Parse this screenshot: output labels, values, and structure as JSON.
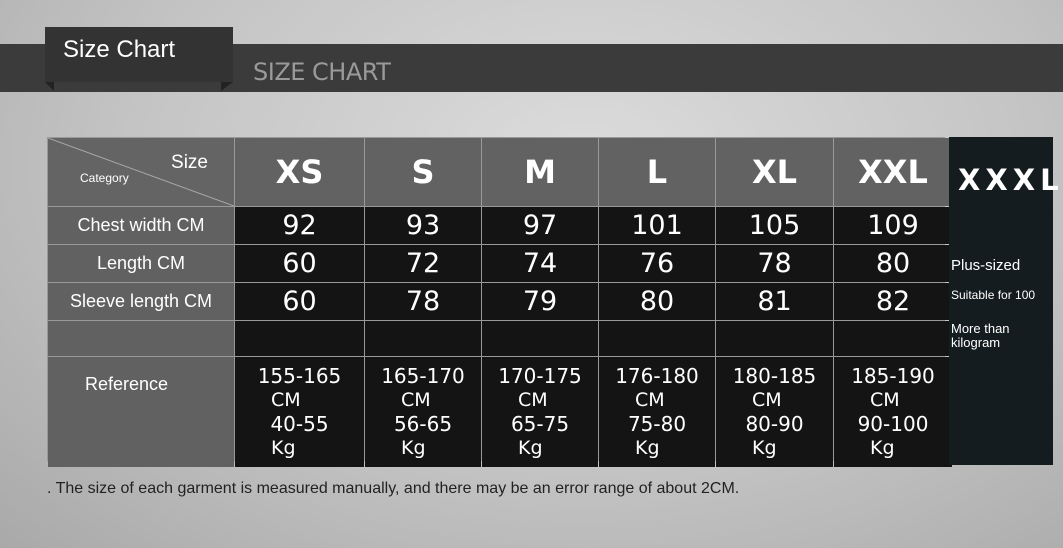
{
  "header": {
    "title": "Size Chart",
    "subtitle": "SIZE CHART"
  },
  "table": {
    "corner": {
      "size": "Size",
      "category": "Category"
    },
    "sizes": [
      "XS",
      "S",
      "M",
      "L",
      "XL",
      "XXL"
    ],
    "rows": [
      {
        "label": "Chest width CM",
        "values": [
          "92",
          "93",
          "97",
          "101",
          "105",
          "109"
        ]
      },
      {
        "label": "Length CM",
        "values": [
          "60",
          "72",
          "74",
          "76",
          "78",
          "80"
        ]
      },
      {
        "label": "Sleeve length CM",
        "values": [
          "60",
          "78",
          "79",
          "80",
          "81",
          "82"
        ]
      },
      {
        "label": "",
        "values": [
          "",
          "",
          "",
          "",
          "",
          ""
        ]
      }
    ],
    "reference": {
      "label": "Reference",
      "values": [
        {
          "height": "155-165",
          "hunit": "CM",
          "weight": "40-55",
          "wunit": "Kg"
        },
        {
          "height": "165-170",
          "hunit": "CM",
          "weight": "56-65",
          "wunit": "Kg"
        },
        {
          "height": "170-175",
          "hunit": "CM",
          "weight": "65-75",
          "wunit": "Kg"
        },
        {
          "height": "176-180",
          "hunit": "CM",
          "weight": "75-80",
          "wunit": "Kg"
        },
        {
          "height": "180-185",
          "hunit": "CM",
          "weight": "80-90",
          "wunit": "Kg"
        },
        {
          "height": "185-190",
          "hunit": "CM",
          "weight": "90-100",
          "wunit": "Kg"
        }
      ]
    }
  },
  "xxxl": {
    "title": "XXXL",
    "line1": "Plus-sized",
    "line2": "Suitable for 100",
    "line3": "More than kilogram"
  },
  "note": ". The size of each garment is measured manually, and there may be an error range of about 2CM."
}
